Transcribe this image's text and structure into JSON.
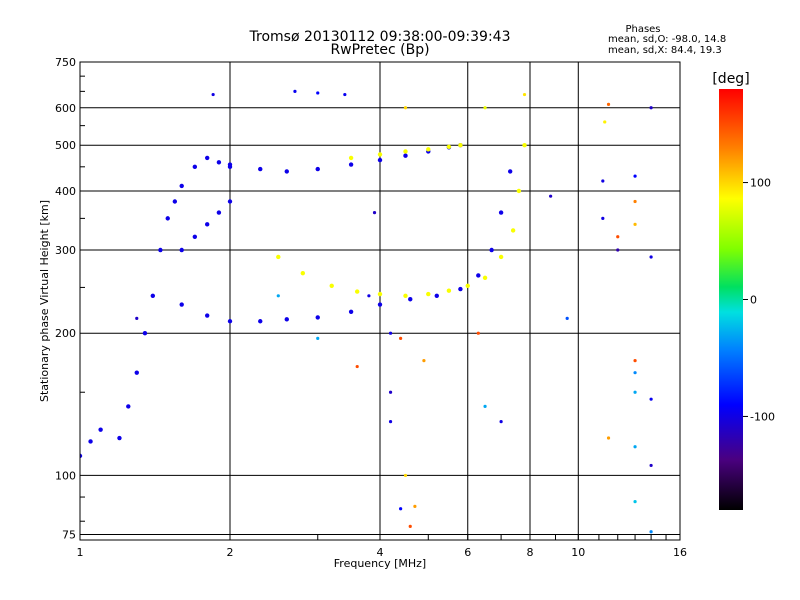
{
  "chart_data": {
    "type": "scatter",
    "title": "Tromsø 20130112 09:38:00-09:39:43",
    "subtitle": "RwPretec (Bp)",
    "stats": {
      "heading": "Phases",
      "line1": "mean, sd,O:  -98.0, 14.8",
      "line2": "mean, sd,X:  84.4, 19.3"
    },
    "xlabel": "Frequency [MHz]",
    "ylabel": "Stationary phase Virtual Height [km]",
    "xscale": "log",
    "yscale": "log",
    "xlim": [
      1,
      16
    ],
    "ylim": [
      73,
      750
    ],
    "grid": true,
    "xticks": [
      1,
      2,
      4,
      6,
      8,
      10,
      16
    ],
    "xtick_labels": [
      "1",
      "2",
      "4",
      "6",
      "8",
      "10",
      "16"
    ],
    "yticks": [
      75,
      100,
      200,
      300,
      400,
      500,
      600,
      750
    ],
    "ytick_labels": [
      "75",
      "100",
      "200",
      "300",
      "400",
      "500",
      "600",
      "750"
    ],
    "colorbar": {
      "label": "[deg]",
      "range": [
        -180,
        180
      ],
      "ticks": [
        -100,
        0,
        100
      ],
      "tick_labels": [
        "-100",
        "0",
        "100"
      ],
      "placement": "right"
    },
    "traces": [
      {
        "name": "",
        "phase": -98,
        "x": [
          1.0,
          1.05,
          1.1,
          1.2,
          1.25,
          1.3,
          1.35,
          1.4,
          1.45,
          1.5,
          1.55,
          1.6,
          1.7,
          1.8,
          1.9,
          2.0
        ],
        "y": [
          110,
          118,
          125,
          120,
          140,
          165,
          200,
          240,
          300,
          350,
          380,
          410,
          450,
          470,
          460,
          455
        ]
      },
      {
        "name": "",
        "phase": -98,
        "x": [
          2.0,
          2.3,
          2.6,
          3.0,
          3.5,
          4.0,
          4.5,
          5.0,
          5.5,
          5.8
        ],
        "y": [
          450,
          445,
          440,
          445,
          455,
          465,
          475,
          485,
          495,
          500
        ]
      },
      {
        "name": "",
        "phase": -98,
        "x": [
          1.6,
          1.8,
          2.0,
          2.3,
          2.6,
          3.0,
          3.5,
          4.0,
          4.6,
          5.2,
          5.8,
          6.3,
          6.7,
          7.0,
          7.3
        ],
        "y": [
          230,
          218,
          212,
          212,
          214,
          216,
          222,
          230,
          236,
          240,
          248,
          265,
          300,
          360,
          440
        ]
      },
      {
        "name": "",
        "phase": 84,
        "x": [
          2.5,
          2.8,
          3.2,
          3.6,
          4.0,
          4.5,
          5.0,
          5.5,
          6.0,
          6.5,
          7.0,
          7.4,
          7.6,
          7.8
        ],
        "y": [
          290,
          268,
          252,
          245,
          242,
          240,
          242,
          246,
          252,
          262,
          290,
          330,
          400,
          500
        ]
      },
      {
        "name": "",
        "phase": 84,
        "x": [
          3.5,
          4.0,
          4.5,
          5.0,
          5.5,
          5.8
        ],
        "y": [
          470,
          478,
          485,
          490,
          496,
          500
        ]
      },
      {
        "name": "",
        "phase": -98,
        "x": [
          1.6,
          1.7,
          1.8,
          1.9,
          2.0
        ],
        "y": [
          300,
          320,
          340,
          360,
          380
        ]
      }
    ],
    "scattered_points": [
      {
        "x": 1.85,
        "y": 640,
        "phase": -100
      },
      {
        "x": 2.7,
        "y": 650,
        "phase": -95
      },
      {
        "x": 3.0,
        "y": 645,
        "phase": -90
      },
      {
        "x": 3.4,
        "y": 640,
        "phase": -95
      },
      {
        "x": 6.5,
        "y": 600,
        "phase": 80
      },
      {
        "x": 7.8,
        "y": 640,
        "phase": 95
      },
      {
        "x": 8.8,
        "y": 390,
        "phase": -110
      },
      {
        "x": 11.5,
        "y": 610,
        "phase": 140
      },
      {
        "x": 11.3,
        "y": 560,
        "phase": 90
      },
      {
        "x": 11.2,
        "y": 420,
        "phase": -100
      },
      {
        "x": 11.2,
        "y": 350,
        "phase": -100
      },
      {
        "x": 12.0,
        "y": 320,
        "phase": 150
      },
      {
        "x": 12.0,
        "y": 300,
        "phase": -120
      },
      {
        "x": 13.0,
        "y": 430,
        "phase": -90
      },
      {
        "x": 13.0,
        "y": 380,
        "phase": 130
      },
      {
        "x": 13.0,
        "y": 340,
        "phase": 110
      },
      {
        "x": 14.0,
        "y": 600,
        "phase": -110
      },
      {
        "x": 14.0,
        "y": 290,
        "phase": -100
      },
      {
        "x": 13.0,
        "y": 175,
        "phase": 150
      },
      {
        "x": 13.0,
        "y": 165,
        "phase": -40
      },
      {
        "x": 13.0,
        "y": 150,
        "phase": -30
      },
      {
        "x": 14.0,
        "y": 145,
        "phase": -95
      },
      {
        "x": 13.0,
        "y": 115,
        "phase": -30
      },
      {
        "x": 14.0,
        "y": 105,
        "phase": -110
      },
      {
        "x": 13.0,
        "y": 88,
        "phase": -20
      },
      {
        "x": 14.0,
        "y": 76,
        "phase": -40
      },
      {
        "x": 11.5,
        "y": 120,
        "phase": 120
      },
      {
        "x": 4.2,
        "y": 200,
        "phase": -100
      },
      {
        "x": 4.4,
        "y": 195,
        "phase": 150
      },
      {
        "x": 4.2,
        "y": 150,
        "phase": -110
      },
      {
        "x": 4.2,
        "y": 130,
        "phase": -100
      },
      {
        "x": 4.5,
        "y": 100,
        "phase": 100
      },
      {
        "x": 4.4,
        "y": 85,
        "phase": -90
      },
      {
        "x": 4.7,
        "y": 86,
        "phase": 120
      },
      {
        "x": 4.6,
        "y": 78,
        "phase": 150
      },
      {
        "x": 3.6,
        "y": 170,
        "phase": 150
      },
      {
        "x": 4.9,
        "y": 175,
        "phase": 120
      },
      {
        "x": 3.8,
        "y": 240,
        "phase": -100
      },
      {
        "x": 3.9,
        "y": 360,
        "phase": -110
      },
      {
        "x": 4.5,
        "y": 600,
        "phase": 100
      },
      {
        "x": 6.3,
        "y": 200,
        "phase": 150
      },
      {
        "x": 6.5,
        "y": 140,
        "phase": -30
      },
      {
        "x": 7.0,
        "y": 130,
        "phase": -100
      },
      {
        "x": 9.5,
        "y": 215,
        "phase": -60
      },
      {
        "x": 2.5,
        "y": 240,
        "phase": -30
      },
      {
        "x": 3.0,
        "y": 195,
        "phase": -30
      },
      {
        "x": 1.3,
        "y": 215,
        "phase": -110
      }
    ]
  }
}
